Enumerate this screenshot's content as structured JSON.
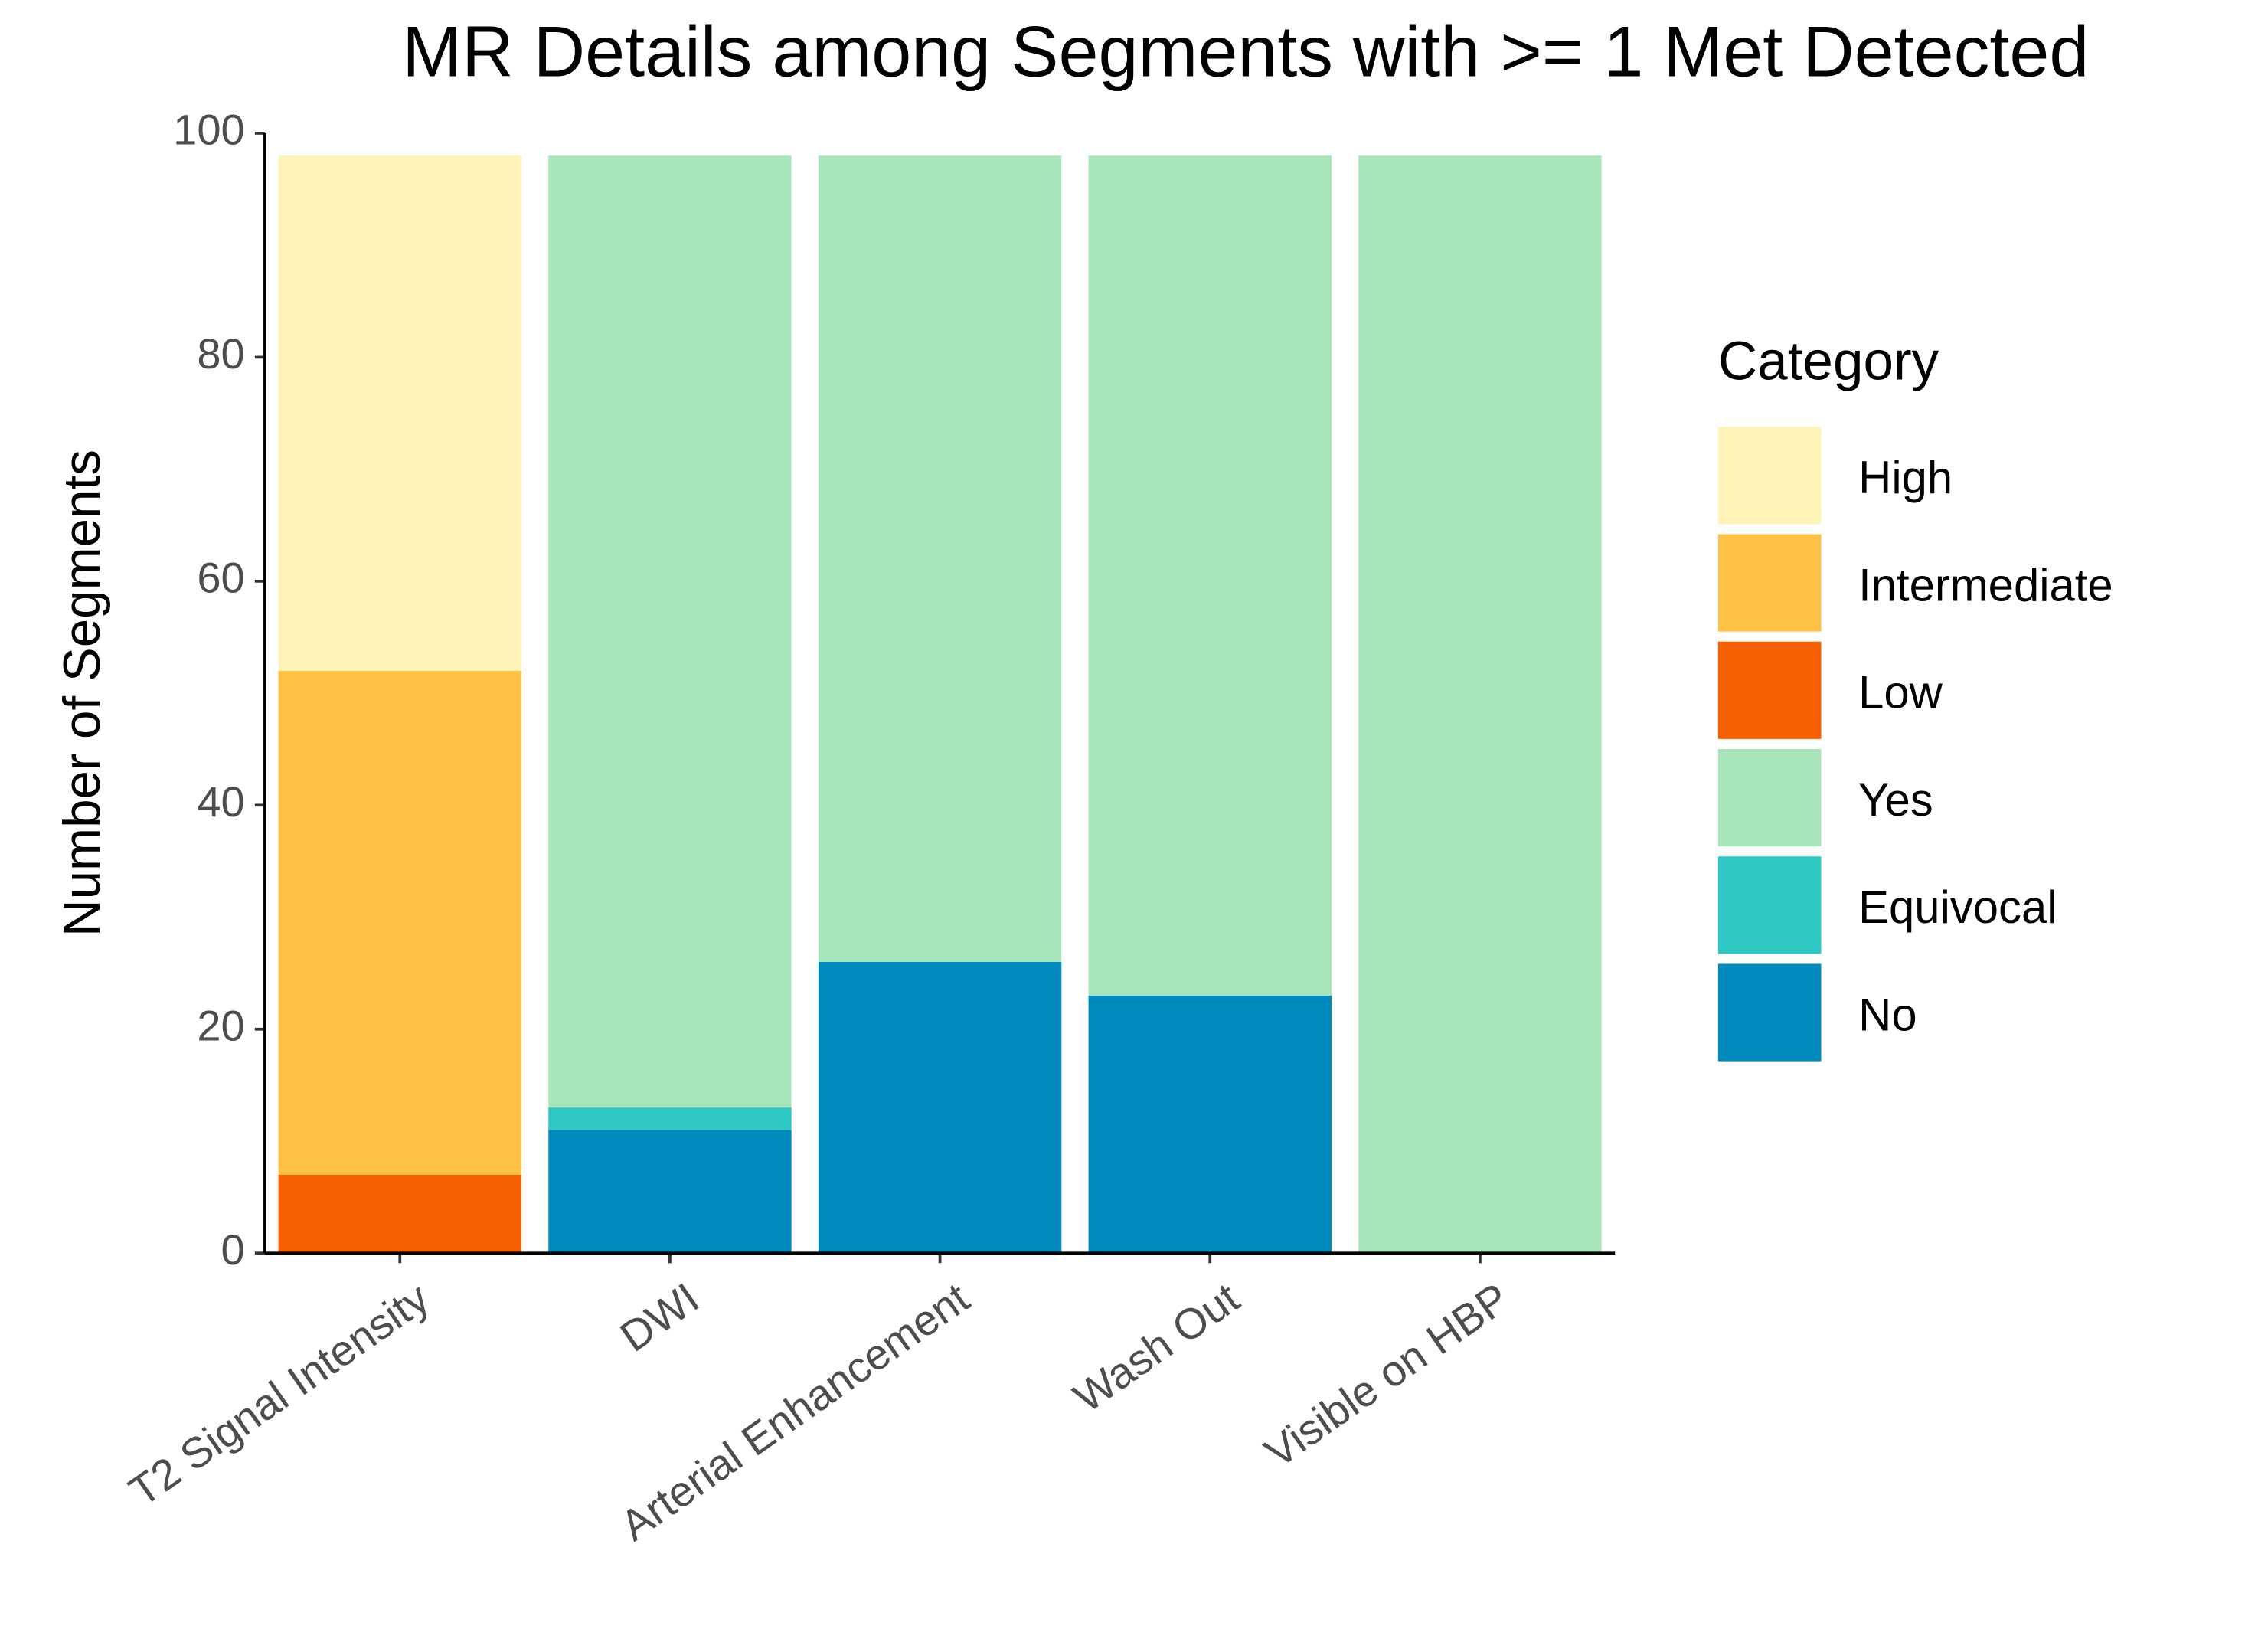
{
  "chart_data": {
    "type": "stacked_bar",
    "title": "MR Details among Segments with >= 1 Met Detected",
    "y_label": "Number of Segments",
    "legend_title": "Category",
    "categories": [
      "T2 Signal Intensity",
      "DWI",
      "Arterial Enhancement",
      "Wash Out",
      "Visible on HBP"
    ],
    "series": [
      {
        "name": "High",
        "color": "#fff4b8",
        "values": [
          46,
          null,
          null,
          null,
          null
        ]
      },
      {
        "name": "Intermediate",
        "color": "#fdc245",
        "values": [
          45,
          null,
          null,
          null,
          null
        ]
      },
      {
        "name": "Low",
        "color": "#f55f00",
        "values": [
          7,
          null,
          null,
          null,
          null
        ]
      },
      {
        "name": "Yes",
        "color": "#a8e5bb",
        "values": [
          null,
          85,
          72,
          75,
          98
        ]
      },
      {
        "name": "Equivocal",
        "color": "#2ec8c4",
        "values": [
          null,
          2,
          null,
          null,
          null
        ]
      },
      {
        "name": "No",
        "color": "#008bbf",
        "values": [
          null,
          11,
          26,
          23,
          null
        ]
      }
    ],
    "ylim": [
      0,
      100
    ],
    "yticks": [
      0,
      20,
      40,
      60,
      80,
      100
    ],
    "grid": false
  }
}
